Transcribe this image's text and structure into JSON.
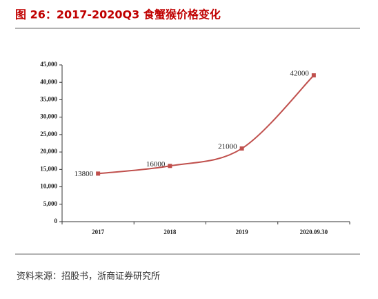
{
  "title": "图 26：2017-2020Q3 食蟹猴价格变化",
  "source": "资料来源：招股书，浙商证券研究所",
  "chart_data": {
    "type": "line",
    "categories": [
      "2017",
      "2018",
      "2019",
      "2020.09.30"
    ],
    "series": [
      {
        "color": "#c0504d",
        "values": [
          13800,
          16000,
          21000,
          42000
        ]
      }
    ],
    "ylim": [
      0,
      45000
    ],
    "yticks": [
      0,
      {
        "value": 5000,
        "label": "5,000"
      },
      {
        "value": 10000,
        "label": "10,000"
      },
      {
        "value": 15000,
        "label": "15,000"
      },
      {
        "value": 20000,
        "label": "20,000"
      },
      {
        "value": 25000,
        "label": "25,000"
      },
      {
        "value": 30000,
        "label": "30,000"
      },
      {
        "value": 35000,
        "label": "35,000"
      },
      {
        "value": 40000,
        "label": "40,000"
      },
      {
        "value": 45000,
        "label": "45,000"
      }
    ],
    "smooth": true
  }
}
